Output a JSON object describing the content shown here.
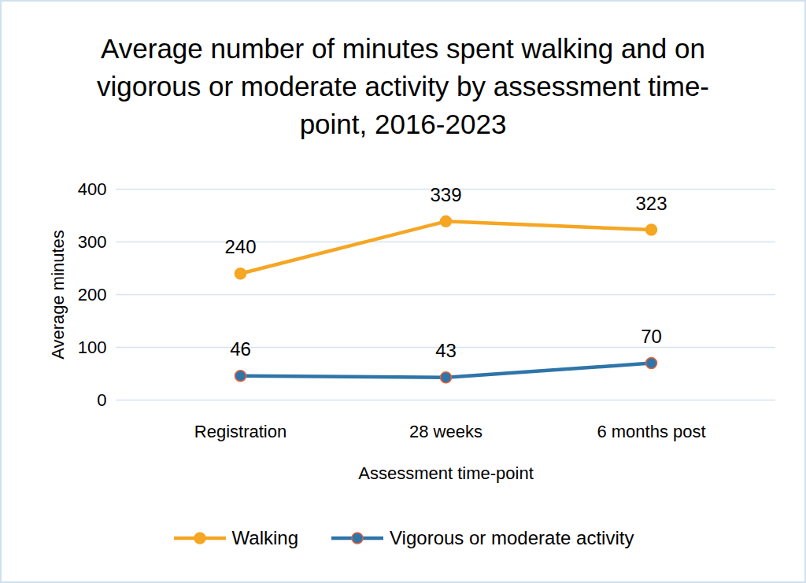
{
  "chart_data": {
    "type": "line",
    "title": "Average number of minutes spent walking and on vigorous or moderate activity by assessment time-point, 2016-2023",
    "x_label": "Assessment time-point",
    "y_label": "Average minutes",
    "categories": [
      "Registration",
      "28 weeks",
      "6 months post"
    ],
    "series": [
      {
        "name": "Walking",
        "color": "#f5a623",
        "marker": "circle",
        "values": [
          240,
          339,
          323
        ]
      },
      {
        "name": "Vigorous or moderate activity",
        "color": "#2e75a8",
        "marker": "circle",
        "values": [
          46,
          43,
          70
        ]
      }
    ],
    "ylim": [
      0,
      400
    ],
    "yticks": [
      0,
      100,
      200,
      300,
      400
    ],
    "grid": true,
    "legend": "bottom",
    "data_labels": true
  }
}
